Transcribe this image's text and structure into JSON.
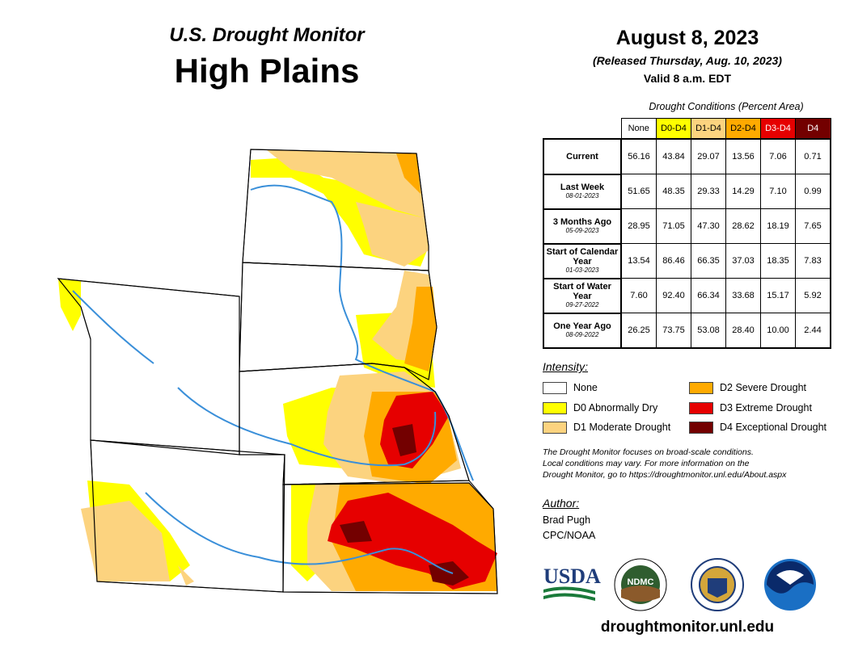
{
  "header": {
    "subtitle": "U.S. Drought Monitor",
    "region": "High Plains",
    "date": "August 8, 2023",
    "released": "(Released Thursday, Aug. 10, 2023)",
    "valid": "Valid 8 a.m. EDT"
  },
  "table": {
    "caption": "Drought Conditions (Percent Area)",
    "columns": [
      "None",
      "D0-D4",
      "D1-D4",
      "D2-D4",
      "D3-D4",
      "D4"
    ],
    "column_colors": [
      "#ffffff",
      "#ffff00",
      "#fcd37f",
      "#ffaa00",
      "#e60000",
      "#730000"
    ],
    "rows": [
      {
        "label": "Current",
        "date": "",
        "values": [
          "56.16",
          "43.84",
          "29.07",
          "13.56",
          "7.06",
          "0.71"
        ]
      },
      {
        "label": "Last Week",
        "date": "08-01-2023",
        "values": [
          "51.65",
          "48.35",
          "29.33",
          "14.29",
          "7.10",
          "0.99"
        ]
      },
      {
        "label": "3 Months Ago",
        "date": "05-09-2023",
        "values": [
          "28.95",
          "71.05",
          "47.30",
          "28.62",
          "18.19",
          "7.65"
        ]
      },
      {
        "label": "Start of Calendar Year",
        "date": "01-03-2023",
        "values": [
          "13.54",
          "86.46",
          "66.35",
          "37.03",
          "18.35",
          "7.83"
        ]
      },
      {
        "label": "Start of Water Year",
        "date": "09-27-2022",
        "values": [
          "7.60",
          "92.40",
          "66.34",
          "33.68",
          "15.17",
          "5.92"
        ]
      },
      {
        "label": "One Year Ago",
        "date": "08-09-2022",
        "values": [
          "26.25",
          "73.75",
          "53.08",
          "28.40",
          "10.00",
          "2.44"
        ]
      }
    ]
  },
  "legend": {
    "title": "Intensity:",
    "items": [
      {
        "label": "None",
        "color": "#ffffff"
      },
      {
        "label": "D0 Abnormally Dry",
        "color": "#ffff00"
      },
      {
        "label": "D1 Moderate Drought",
        "color": "#fcd37f"
      },
      {
        "label": "D2 Severe Drought",
        "color": "#ffaa00"
      },
      {
        "label": "D3 Extreme Drought",
        "color": "#e60000"
      },
      {
        "label": "D4 Exceptional Drought",
        "color": "#730000"
      }
    ]
  },
  "note": {
    "line1": "The Drought Monitor focuses on broad-scale conditions.",
    "line2": "Local conditions may vary. For more information on the",
    "line3": "Drought Monitor, go to https://droughtmonitor.unl.edu/About.aspx"
  },
  "author": {
    "label": "Author:",
    "name": "Brad Pugh",
    "org": "CPC/NOAA"
  },
  "logos": {
    "usda": "USDA",
    "ndmc": "NDMC"
  },
  "footer": {
    "url": "droughtmonitor.unl.edu"
  },
  "colors": {
    "river": "#3a8fd9",
    "border": "#000000"
  }
}
